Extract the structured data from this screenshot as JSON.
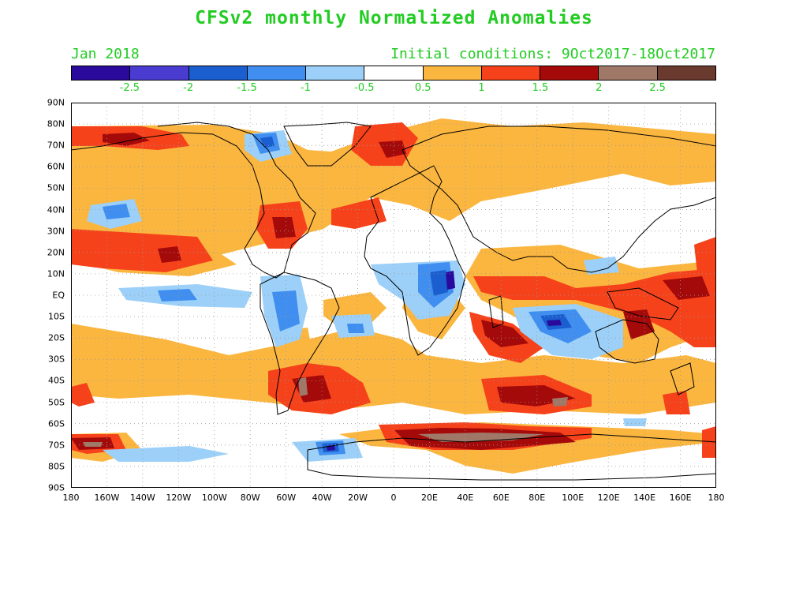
{
  "title": "CFSv2 monthly Normalized Anomalies",
  "valid_month": "Jan 2018",
  "initial_conditions": "Initial conditions: 9Oct2017-18Oct2017",
  "colorbar": {
    "colors": [
      "#2a0a9c",
      "#4a3cd0",
      "#1a5ed0",
      "#3f8ef0",
      "#9cd0f8",
      "#ffffff",
      "#fbb640",
      "#f6421a",
      "#a50a0a",
      "#a07868",
      "#6a3a2e"
    ],
    "labels": [
      "-2.5",
      "-2",
      "-1.5",
      "-1",
      "-0.5",
      "0.5",
      "1",
      "1.5",
      "2",
      "2.5"
    ]
  },
  "lat_labels": [
    "90N",
    "80N",
    "70N",
    "60N",
    "50N",
    "40N",
    "30N",
    "20N",
    "10N",
    "EQ",
    "10S",
    "20S",
    "30S",
    "40S",
    "50S",
    "60S",
    "70S",
    "80S",
    "90S"
  ],
  "lon_labels": [
    "180",
    "160W",
    "140W",
    "120W",
    "100W",
    "80W",
    "60W",
    "40W",
    "20W",
    "0",
    "20E",
    "40E",
    "60E",
    "80E",
    "100E",
    "120E",
    "140E",
    "160E",
    "180"
  ]
}
